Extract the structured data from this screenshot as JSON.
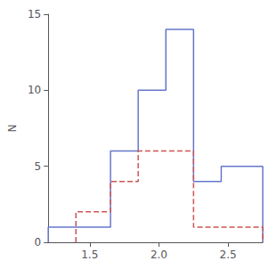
{
  "chart_data": {
    "type": "histogram",
    "series": [
      {
        "bins": [
          1.2,
          1.4,
          1.65,
          1.85,
          2.05,
          2.25,
          2.45,
          2.75
        ],
        "values": [
          1,
          1,
          6,
          10,
          14,
          4,
          5
        ],
        "color": "#6677cc",
        "line_style": "solid"
      },
      {
        "bins": [
          1.4,
          1.65,
          1.85,
          2.05,
          2.25,
          2.45,
          2.75
        ],
        "values": [
          2,
          4,
          6,
          6,
          1,
          1
        ],
        "color": "#cc5555",
        "line_style": "dashed"
      }
    ],
    "xlim": [
      1.2,
      2.75
    ],
    "ylim": [
      0,
      15
    ],
    "xticks": [
      1.5,
      {
        "value": 2.0,
        "label": "2.0"
      },
      2.5
    ],
    "yticks": [
      0,
      5,
      10,
      15
    ],
    "ylabel": "N",
    "grid": false,
    "legend": false
  }
}
